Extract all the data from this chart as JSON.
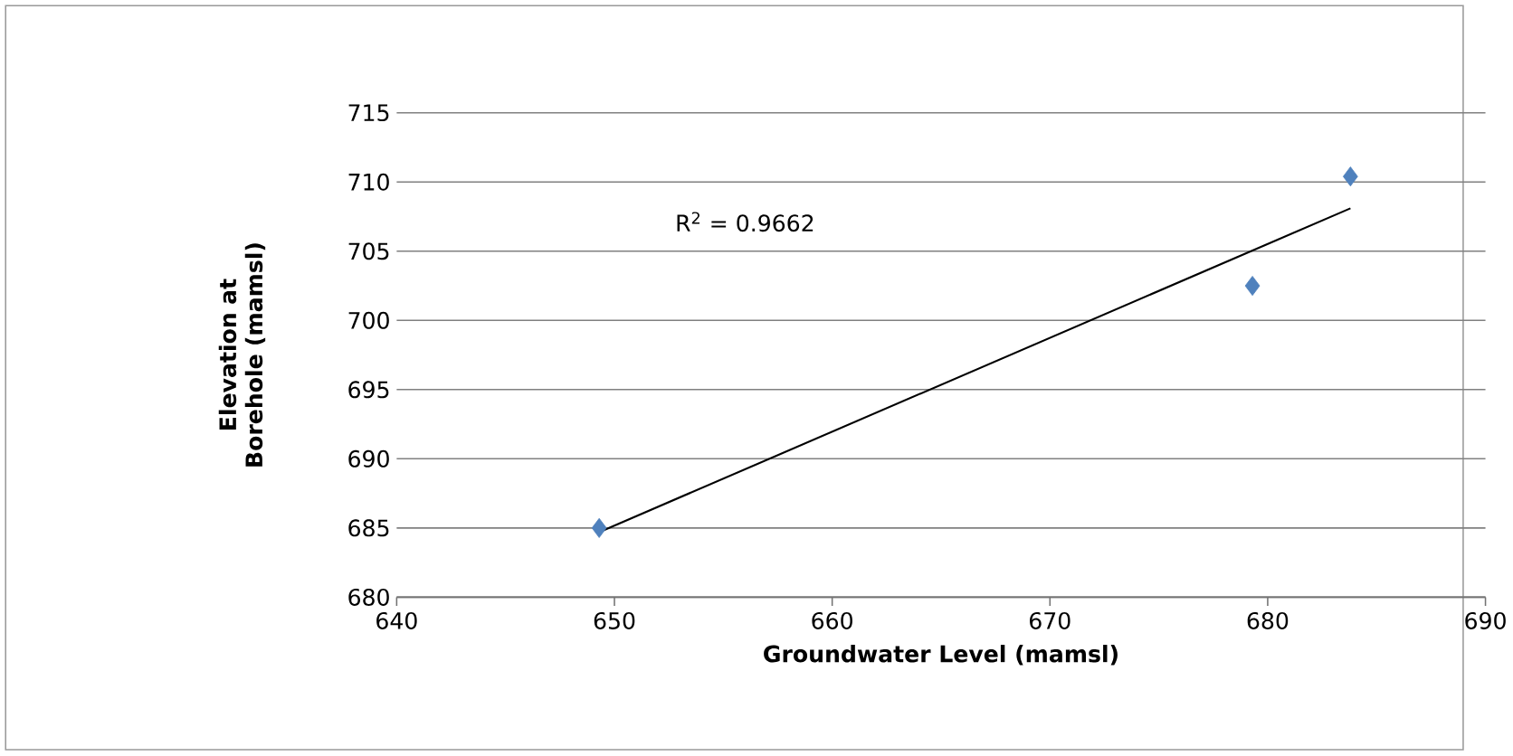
{
  "chart_data": {
    "type": "scatter",
    "xlabel": "Groundwater Level (mamsl)",
    "ylabel": "Elevation at Borehole (mamsl)",
    "xlim": [
      640,
      690
    ],
    "xticks": [
      640,
      650,
      660,
      670,
      680,
      690
    ],
    "ylim": [
      680,
      715
    ],
    "yticks": [
      680,
      685,
      690,
      695,
      700,
      705,
      710,
      715
    ],
    "grid": "y",
    "series": [
      {
        "color": "#4f81bd",
        "marker": "diamond",
        "x": [
          649.3,
          679.3,
          683.8
        ],
        "values": [
          685.0,
          702.5,
          710.4
        ]
      },
      {
        "type": "line",
        "color": "#000000",
        "marker": "none",
        "line_style": "solid",
        "x": [
          649.3,
          683.8
        ],
        "values": [
          684.7,
          708.1
        ]
      }
    ],
    "annotations": [
      "R$^{2}$ = 0.9662"
    ]
  }
}
